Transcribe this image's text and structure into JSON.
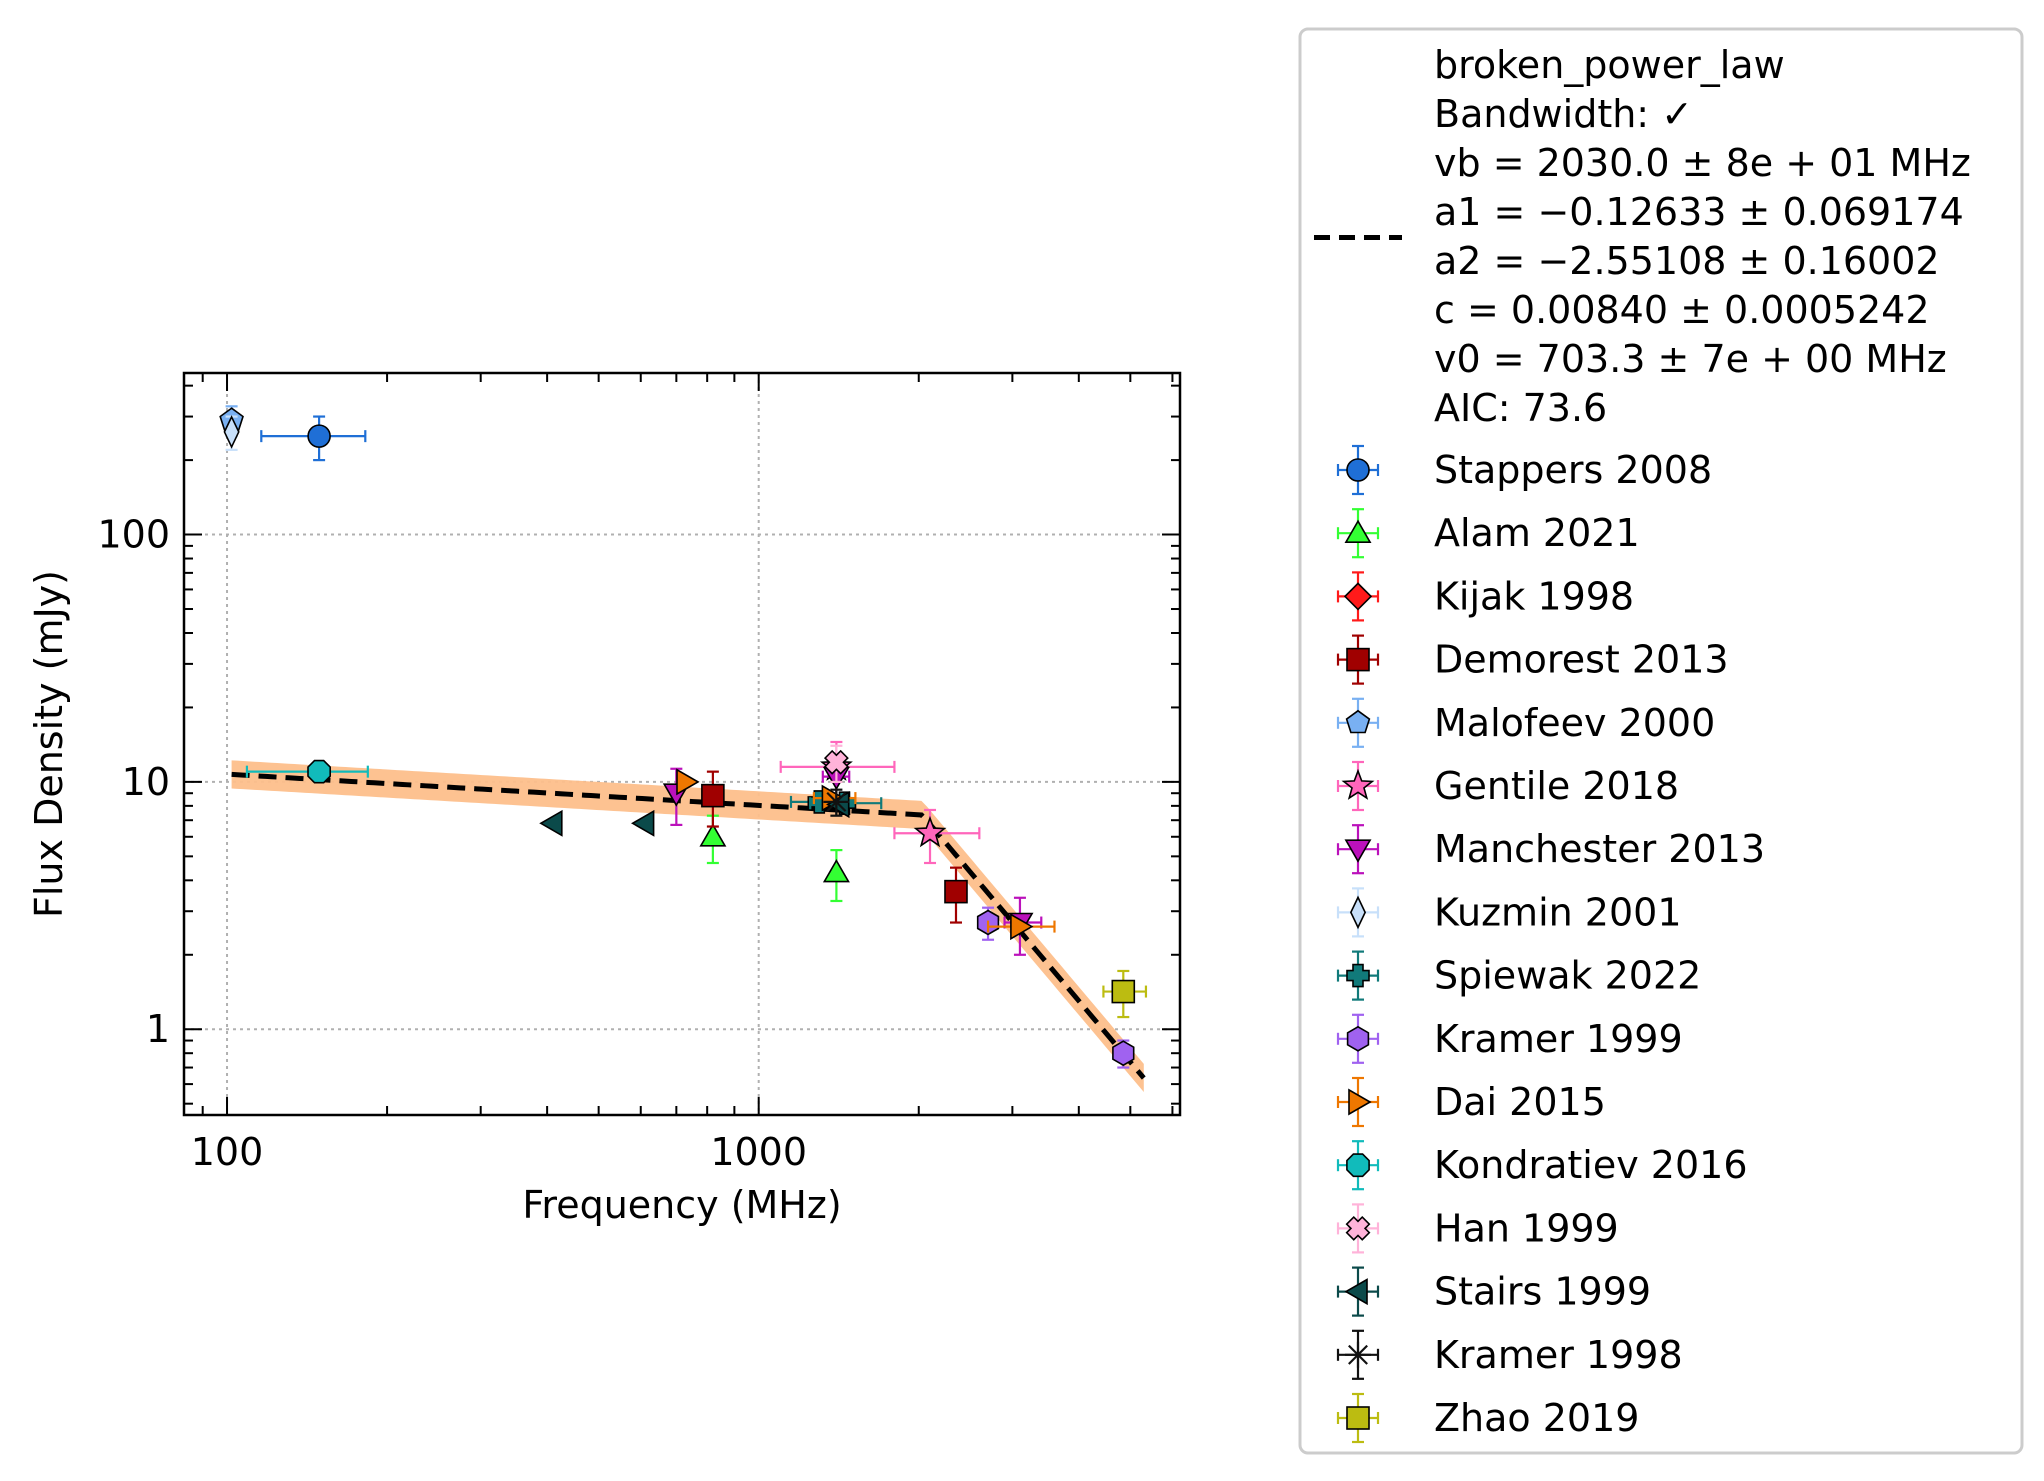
{
  "chart_data": {
    "type": "scatter",
    "xlabel": "Frequency (MHz)",
    "ylabel": "Flux Density (mJy)",
    "xscale": "log",
    "yscale": "log",
    "xlim": [
      83,
      6200
    ],
    "ylim": [
      0.45,
      450
    ],
    "xticks": [
      {
        "value": 100,
        "label": "100"
      },
      {
        "value": 1000,
        "label": "1000"
      }
    ],
    "yticks": [
      {
        "value": 1,
        "label": "1"
      },
      {
        "value": 10,
        "label": "10"
      },
      {
        "value": 100,
        "label": "100"
      }
    ],
    "grid": true,
    "legend_position": "outside-right",
    "fit": {
      "name": "broken_power_law",
      "lines": [
        "broken_power_law",
        "Bandwidth: ✓",
        "vb = 2030.0 ± 8e + 01 MHz",
        "a1 = −0.12633 ± 0.069174",
        "a2 = −2.55108 ± 0.16002",
        "c = 0.00840 ± 0.0005242",
        "v0 = 703.3 ± 7e + 00 MHz",
        "AIC: 73.6"
      ],
      "vb": 2030.0,
      "a1": -0.12633,
      "a2": -2.55108,
      "c": 0.0084,
      "v0": 703.3,
      "x_range": [
        102,
        5300
      ],
      "line_color": "#000000",
      "band_color": "#fdbf8b"
    },
    "series": [
      {
        "name": "Stappers 2008",
        "marker": "circle",
        "color": "#1f6fd6",
        "points": [
          {
            "x": 149,
            "y": 250,
            "xerr": [
              33,
              33
            ],
            "yerr": [
              50,
              50
            ]
          }
        ]
      },
      {
        "name": "Alam 2021",
        "marker": "triangle-up",
        "color": "#33ff33",
        "points": [
          {
            "x": 820,
            "y": 6.0,
            "yerr": [
              1.3,
              1.3
            ]
          },
          {
            "x": 1400,
            "y": 4.3,
            "yerr": [
              1.0,
              1.0
            ]
          }
        ]
      },
      {
        "name": "Kijak 1998",
        "marker": "diamond",
        "color": "#ff1a1a",
        "points": []
      },
      {
        "name": "Demorest 2013",
        "marker": "square",
        "color": "#a00000",
        "points": [
          {
            "x": 820,
            "y": 8.8,
            "yerr": [
              2.2,
              2.2
            ]
          },
          {
            "x": 2350,
            "y": 3.6,
            "yerr": [
              0.9,
              0.9
            ]
          }
        ]
      },
      {
        "name": "Malofeev 2000",
        "marker": "pentagon",
        "color": "#79b0f2",
        "points": [
          {
            "x": 102,
            "y": 290,
            "yerr": [
              40,
              40
            ]
          }
        ]
      },
      {
        "name": "Gentile 2018",
        "marker": "star",
        "color": "#ff66bb",
        "points": [
          {
            "x": 1400,
            "y": 11.5,
            "xerr": [
              300,
              400
            ],
            "yerr": [
              3.0,
              3.0
            ]
          },
          {
            "x": 2100,
            "y": 6.2,
            "xerr": [
              300,
              500
            ],
            "yerr": [
              1.5,
              1.5
            ]
          }
        ]
      },
      {
        "name": "Manchester 2013",
        "marker": "triangle-down",
        "color": "#bb11bb",
        "points": [
          {
            "x": 700,
            "y": 9.0,
            "yerr": [
              2.3,
              2.3
            ]
          },
          {
            "x": 1400,
            "y": 10.5,
            "xerr": [
              80,
              80
            ],
            "yerr": [
              2.0,
              2.0
            ]
          },
          {
            "x": 3100,
            "y": 2.7,
            "xerr": [
              200,
              300
            ],
            "yerr": [
              0.7,
              0.7
            ]
          }
        ]
      },
      {
        "name": "Kuzmin 2001",
        "marker": "thin-diamond",
        "color": "#c8e0fa",
        "points": [
          {
            "x": 102,
            "y": 260,
            "yerr": [
              40,
              40
            ]
          }
        ]
      },
      {
        "name": "Spiewak 2022",
        "marker": "plus",
        "color": "#117a7a",
        "points": [
          {
            "x": 1300,
            "y": 8.3,
            "xerr": [
              150,
              150
            ]
          },
          {
            "x": 1450,
            "y": 8.2,
            "xerr": [
              200,
              250
            ]
          }
        ]
      },
      {
        "name": "Kramer 1999",
        "marker": "hexagon",
        "color": "#a062f0",
        "points": [
          {
            "x": 2700,
            "y": 2.7,
            "xerr": [
              100,
              100
            ],
            "yerr": [
              0.4,
              0.4
            ]
          },
          {
            "x": 4850,
            "y": 0.8,
            "yerr": [
              0.1,
              0.1
            ]
          }
        ]
      },
      {
        "name": "Dai 2015",
        "marker": "triangle-right",
        "color": "#ee7700",
        "points": [
          {
            "x": 730,
            "y": 10.0
          },
          {
            "x": 1370,
            "y": 8.6,
            "xerr": [
              100,
              150
            ]
          },
          {
            "x": 3100,
            "y": 2.6,
            "xerr": [
              400,
              500
            ]
          }
        ]
      },
      {
        "name": "Kondratiev 2016",
        "marker": "octagon",
        "color": "#11bbbb",
        "points": [
          {
            "x": 149,
            "y": 11.0,
            "xerr": [
              40,
              35
            ],
            "yerr": [
              0.5,
              0.5
            ]
          }
        ]
      },
      {
        "name": "Han 1999",
        "marker": "x-filled",
        "color": "#ffb3d9",
        "points": [
          {
            "x": 1400,
            "y": 12.0,
            "yerr": [
              2.0,
              2.0
            ]
          }
        ]
      },
      {
        "name": "Stairs 1999",
        "marker": "triangle-left",
        "color": "#0b4a4a",
        "points": [
          {
            "x": 410,
            "y": 6.8
          },
          {
            "x": 610,
            "y": 6.8
          },
          {
            "x": 1420,
            "y": 8.1
          }
        ]
      },
      {
        "name": "Kramer 1998",
        "marker": "star-line",
        "color": "#111111",
        "points": [
          {
            "x": 1400,
            "y": 8.3,
            "yerr": [
              1.0,
              1.0
            ]
          }
        ]
      },
      {
        "name": "Zhao 2019",
        "marker": "square",
        "color": "#bcbc11",
        "points": [
          {
            "x": 4850,
            "y": 1.42,
            "xerr": [
              400,
              500
            ],
            "yerr": [
              0.3,
              0.3
            ]
          }
        ]
      }
    ]
  }
}
